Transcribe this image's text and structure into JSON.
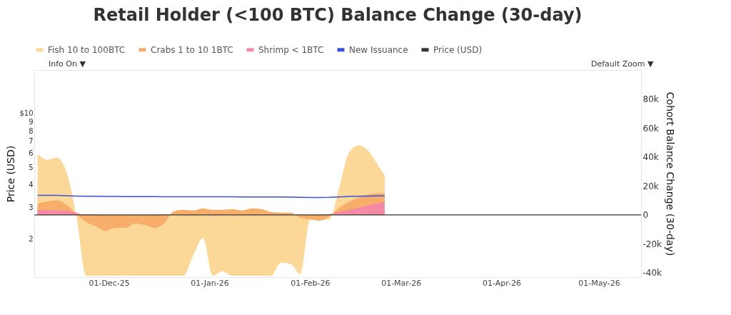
{
  "chart_data": {
    "type": "area",
    "title": "Retail Holder (<100 BTC) Balance Change (30-day)",
    "ylabel": "Price (USD)",
    "y2label": "Cohort Balance Change (30-day)",
    "x": [
      "2025-11-09",
      "2025-11-12",
      "2025-11-15",
      "2025-11-18",
      "2025-11-21",
      "2025-11-24",
      "2025-11-27",
      "2025-11-30",
      "2025-12-03",
      "2025-12-06",
      "2025-12-09",
      "2025-12-12",
      "2025-12-15",
      "2025-12-18",
      "2025-12-21",
      "2025-12-24",
      "2025-12-27",
      "2025-12-30",
      "2026-01-02",
      "2026-01-05",
      "2026-01-08",
      "2026-01-11",
      "2026-01-14",
      "2026-01-17",
      "2026-01-20",
      "2026-01-23",
      "2026-01-26",
      "2026-01-29",
      "2026-02-01",
      "2026-02-04",
      "2026-02-07",
      "2026-02-10",
      "2026-02-13",
      "2026-02-16",
      "2026-02-19",
      "2026-02-22",
      "2026-02-24"
    ],
    "series": [
      {
        "name": "Fish 10 to 100BTC",
        "axis": "y2",
        "color": "#fcd898",
        "values": [
          42000,
          38000,
          39500,
          29000,
          -1000,
          -42000,
          -42000,
          -42000,
          -42000,
          -42000,
          -42000,
          -42000,
          -42000,
          -42000,
          -42000,
          -42000,
          -28000,
          -16000,
          -42000,
          -39000,
          -42000,
          -42000,
          -42000,
          -42000,
          -42000,
          -33000,
          -34000,
          -41000,
          -3500,
          -3500,
          -3000,
          19000,
          43000,
          48000,
          44000,
          34000,
          27000
        ]
      },
      {
        "name": "Crabs 1 to 10 1BTC",
        "axis": "y2",
        "color": "#f6ae6a",
        "values": [
          7800,
          9300,
          10000,
          6800,
          500,
          -5000,
          -8000,
          -11000,
          -9000,
          -9000,
          -6000,
          -7000,
          -9000,
          -6000,
          2500,
          3500,
          3000,
          4500,
          3500,
          3500,
          4000,
          3000,
          4500,
          4000,
          2000,
          1500,
          1500,
          -2000,
          -3000,
          -4000,
          -1000,
          5000,
          9000,
          12000,
          14000,
          15000,
          15000
        ]
      },
      {
        "name": "Shrimp < 1BTC",
        "axis": "y2",
        "color": "#f48aa5",
        "values": [
          3400,
          3400,
          3200,
          3000,
          1500,
          -500,
          0,
          0,
          0,
          0,
          0,
          0,
          0,
          0,
          0,
          0,
          0,
          0,
          0,
          0,
          0,
          0,
          0,
          0,
          0,
          0,
          0,
          0,
          0,
          0,
          500,
          2000,
          3500,
          5000,
          6500,
          8000,
          9000
        ]
      },
      {
        "name": "New Issuance",
        "type": "line",
        "axis": "y2",
        "color": "#3b4fe0",
        "values": [
          13500,
          13500,
          13500,
          13200,
          13000,
          12800,
          12800,
          12700,
          12700,
          12600,
          12600,
          12600,
          12600,
          12500,
          12500,
          12500,
          12500,
          12500,
          12500,
          12500,
          12500,
          12400,
          12400,
          12400,
          12300,
          12300,
          12200,
          12100,
          12000,
          12000,
          12100,
          12400,
          12700,
          12900,
          13000,
          13100,
          13200
        ]
      },
      {
        "name": "Price (USD)",
        "type": "line",
        "color": "#333333",
        "values": [
          null,
          null,
          null,
          null,
          null,
          null,
          null,
          null,
          null,
          null,
          null,
          null,
          null,
          null,
          null,
          null,
          null,
          null,
          null,
          null,
          null,
          null,
          null,
          null,
          null,
          null,
          null,
          null,
          null,
          null,
          null,
          null,
          null,
          null,
          null,
          null,
          null
        ]
      }
    ],
    "xlim": [
      "2025-11-08",
      "2026-05-14"
    ],
    "xticks": [
      {
        "value": "2025-12-01",
        "label": "01-Dec-25"
      },
      {
        "value": "2026-01-01",
        "label": "01-Jan-26"
      },
      {
        "value": "2026-02-01",
        "label": "01-Feb-26"
      },
      {
        "value": "2026-03-01",
        "label": "01-Mar-26"
      },
      {
        "value": "2026-04-01",
        "label": "01-Apr-26"
      },
      {
        "value": "2026-05-01",
        "label": "01-May-26"
      }
    ],
    "log": "y",
    "ylim": [
      1.22,
      17.5
    ],
    "yticks": [
      2,
      3,
      4,
      5,
      6,
      7,
      8,
      9,
      {
        "value": 10,
        "label": "$10"
      }
    ],
    "y2lim": [
      -43000,
      100000
    ],
    "y2ticks": [
      {
        "value": -40000,
        "label": "-40k"
      },
      {
        "value": -20000,
        "label": "-20k"
      },
      0,
      {
        "value": 20000,
        "label": "20k"
      },
      {
        "value": 40000,
        "label": "40k"
      },
      {
        "value": 60000,
        "label": "60k"
      },
      {
        "value": 80000,
        "label": "80k"
      }
    ],
    "ref_lines": [
      {
        "axis": "y2",
        "value": 0,
        "color": "#333333"
      }
    ],
    "legend": "top",
    "grid": false,
    "annotations": [
      "Info On ▼",
      "Default Zoom ▼"
    ]
  }
}
